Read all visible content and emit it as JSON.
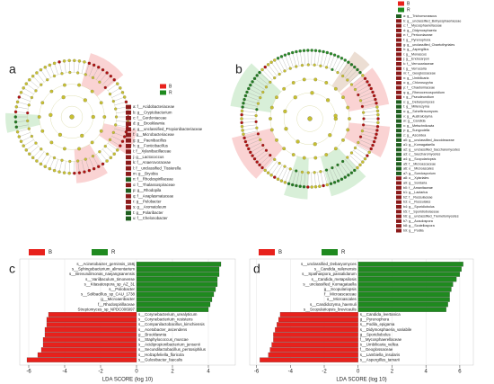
{
  "chart_data": [
    {
      "type": "barh",
      "panel_label": "c",
      "x_label": "LDA SCORE (log 10)",
      "categories": [
        "s__Acinetobacter_gerninsis_158j",
        "s__Sphingobacterium_alimentarium",
        "s__Brevundimonas_naejangsanensis",
        "s__Variibaculum_timonense",
        "s__Kitasatospora_sp_AZ_31",
        "s__Psilobacter",
        "s__Solibacillus_sp_CAU_1738",
        "g__Microaeribacter",
        "f__Rhodospirillaceae",
        "Streptomyces_sp_NPDC006997",
        "s__Corynebacterium_urealyticum",
        "s__Corynebacterium_resistens",
        "s__Companilactobacillus_kimchiensis",
        "s__Acetobacter_ascendens",
        "g__Brooklawnia",
        "s__Staphylococcus_muscae",
        "s__Acidipropionibacterium_jensenii",
        "s__Secundilactobacillus_pentosiphilus",
        "s__Holzapfeliella_floricola",
        "s__Gulosibacter_faecalis"
      ],
      "series": [
        {
          "name": "B",
          "color": "#e8211c",
          "values": [
            null,
            null,
            null,
            null,
            null,
            null,
            null,
            null,
            null,
            null,
            -4.9,
            -5.0,
            -5.0,
            -5.1,
            -5.1,
            -5.2,
            -5.2,
            -5.3,
            -5.5,
            -6.1
          ]
        },
        {
          "name": "R",
          "color": "#1f8a1f",
          "values": [
            4.7,
            4.6,
            4.6,
            4.5,
            4.5,
            4.4,
            4.3,
            4.2,
            4.1,
            4.0,
            null,
            null,
            null,
            null,
            null,
            null,
            null,
            null,
            null,
            null
          ]
        }
      ],
      "xlim": [
        -6.5,
        5.5
      ],
      "xticks": [
        -6,
        -4,
        -2,
        0,
        2,
        4
      ]
    },
    {
      "type": "barh",
      "panel_label": "d",
      "x_label": "LDA SCORE (log 10)",
      "categories": [
        "s__unclassified_Debaryomyces",
        "s__Candida_railenensis",
        "s__Spathaspora_passalidarum",
        "s__Candida_metapsilosis",
        "s__unclassified_Komagataella",
        "g__Scopulariopsis",
        "f__Microascaceae",
        "o__Microascales",
        "s__Candidozyma_haemuli",
        "s__Scopulariopsis_brevicaulis",
        "s__Candida_leertanica",
        "g__Pyrenophora",
        "s__Podila_epigama",
        "s__Didymosphaeria_variabile",
        "g__Sporidiobolus",
        "f__Mycosphaerellaceae",
        "s__Umbilicaria_vellea",
        "f__Geoglossaceae",
        "s__Lambiella_insularis",
        "s__Aspergillus_tamarii"
      ],
      "series": [
        {
          "name": "B",
          "color": "#e8211c",
          "values": [
            null,
            null,
            null,
            null,
            null,
            null,
            null,
            null,
            null,
            null,
            -4.6,
            -4.7,
            -4.8,
            -4.9,
            -5.0,
            -5.0,
            -5.1,
            -5.2,
            -5.3,
            -5.8
          ]
        },
        {
          "name": "R",
          "color": "#1f8a1f",
          "values": [
            6.2,
            6.1,
            6.0,
            5.8,
            5.6,
            5.5,
            5.4,
            5.4,
            5.3,
            5.2,
            null,
            null,
            null,
            null,
            null,
            null,
            null,
            null,
            null,
            null
          ]
        }
      ],
      "xlim": [
        -6.4,
        6.8
      ],
      "xticks": [
        -6,
        -4,
        -2,
        0,
        2,
        4,
        6
      ]
    }
  ],
  "cladograms": [
    {
      "panel_label": "a",
      "groups": [
        {
          "name": "B",
          "color": "#e8211c"
        },
        {
          "name": "R",
          "color": "#1f8a1f"
        }
      ],
      "taxa": [
        {
          "label": "a: f__Acidobacteriaceae",
          "color": "#8b1a1a"
        },
        {
          "label": "b: g__Cryptobacterium",
          "color": "#8b1a1a"
        },
        {
          "label": "c: f__Gordoniaceae",
          "color": "#8b1a1a"
        },
        {
          "label": "d: g__Brooklawnia",
          "color": "#8b1a1a"
        },
        {
          "label": "e: g__unclassified_Propionibacteriaceae",
          "color": "#8b1a1a"
        },
        {
          "label": "f: g__Microbacteriaceae",
          "color": "#8b1a1a"
        },
        {
          "label": "g: g__Paenibacillus",
          "color": "#8b1a1a"
        },
        {
          "label": "h: g__Fonticibacillus",
          "color": "#8b1a1a"
        },
        {
          "label": "i: f__Xylanibacillaceae",
          "color": "#8b1a1a"
        },
        {
          "label": "j: g__Lactococcus",
          "color": "#8b1a1a"
        },
        {
          "label": "k: f__Anaerovoraceae",
          "color": "#8b1a1a"
        },
        {
          "label": "l: f__unclassified_Tissierella",
          "color": "#8b1a1a"
        },
        {
          "label": "m: g__Bryobia",
          "color": "#8b1a1a"
        },
        {
          "label": "n: f__Rhodospirillaceae",
          "color": "#1f5f1f"
        },
        {
          "label": "o: f__Thalassospiraceae",
          "color": "#8b1a1a"
        },
        {
          "label": "p: g__Rhodopila",
          "color": "#1f5f1f"
        },
        {
          "label": "q: f__Anaplasmataceae",
          "color": "#8b1a1a"
        },
        {
          "label": "r: g__Pelobacter",
          "color": "#8b1a1a"
        },
        {
          "label": "s: g__Aromatoleum",
          "color": "#8b1a1a"
        },
        {
          "label": "t: g__Polaribacter",
          "color": "#1f5f1f"
        },
        {
          "label": "u: f__Chelonobacter",
          "color": "#1f5f1f"
        }
      ]
    },
    {
      "panel_label": "b",
      "groups": [
        {
          "name": "B",
          "color": "#e8211c"
        },
        {
          "name": "R",
          "color": "#1f8a1f"
        }
      ],
      "taxa": [
        {
          "label": "a: g__Trichomonascus",
          "color": "#1f5f1f"
        },
        {
          "label": "b: g__unclassified_Botryosphaeriaceae",
          "color": "#8b1a1a"
        },
        {
          "label": "c: f__Mycosphaerellaceae",
          "color": "#8b1a1a"
        },
        {
          "label": "d: g__Didymosphaeria",
          "color": "#8b1a1a"
        },
        {
          "label": "e: f__Periconiaceae",
          "color": "#8b1a1a"
        },
        {
          "label": "f: g__Pyrenophora",
          "color": "#8b1a1a"
        },
        {
          "label": "g: g__unclassified_Chaetothyriales",
          "color": "#8b1a1a"
        },
        {
          "label": "h: g__Aspergillus",
          "color": "#8b1a1a"
        },
        {
          "label": "i: g__Monascus",
          "color": "#8b1a1a"
        },
        {
          "label": "j: g__Endocarpon",
          "color": "#8b1a1a"
        },
        {
          "label": "k: f__Verrucariaceae",
          "color": "#8b1a1a"
        },
        {
          "label": "l: g__Verrucaria",
          "color": "#8b1a1a"
        },
        {
          "label": "m: f__Geoglossaceae",
          "color": "#8b1a1a"
        },
        {
          "label": "n: g__Umbilicaria",
          "color": "#8b1a1a"
        },
        {
          "label": "o: g__Chloroscypha",
          "color": "#8b1a1a"
        },
        {
          "label": "p: f__Chaetomiaceae",
          "color": "#8b1a1a"
        },
        {
          "label": "q: g__Rhexocercosporidium",
          "color": "#8b1a1a"
        },
        {
          "label": "r: g__Pseudeurotium",
          "color": "#8b1a1a"
        },
        {
          "label": "s: g__Debaryomyces",
          "color": "#1f5f1f"
        },
        {
          "label": "t: g__Millerozyma",
          "color": "#1f5f1f"
        },
        {
          "label": "u: g__Scheffersomyces",
          "color": "#1f5f1f"
        },
        {
          "label": "v: g__Australozyma",
          "color": "#1f5f1f"
        },
        {
          "label": "w: g__Candida",
          "color": "#1f5f1f"
        },
        {
          "label": "x: g__Metschnikowia",
          "color": "#1f5f1f"
        },
        {
          "label": "y: g__Sungouiella",
          "color": "#1f5f1f"
        },
        {
          "label": "z: g__Ascoidea",
          "color": "#1f5f1f"
        },
        {
          "label": "a0: g__unclassified_Ascoideaceae",
          "color": "#1f5f1f"
        },
        {
          "label": "a1: g__Komagataella",
          "color": "#1f5f1f"
        },
        {
          "label": "a2: g__unclassified_Saccharomycetes",
          "color": "#1f5f1f"
        },
        {
          "label": "a3: c__Saccharomycetes",
          "color": "#1f5f1f"
        },
        {
          "label": "a4: g__Scopulariopsis",
          "color": "#1f5f1f"
        },
        {
          "label": "a5: f__Microascaceae",
          "color": "#1f5f1f"
        },
        {
          "label": "a6: o__Microascales",
          "color": "#1f5f1f"
        },
        {
          "label": "a7: g__Scedosporium",
          "color": "#1f5f1f"
        },
        {
          "label": "a8: o__Xylariales",
          "color": "#8b1a1a"
        },
        {
          "label": "a9: g__Sordaria",
          "color": "#8b1a1a"
        },
        {
          "label": "b0: f__Amanitaceae",
          "color": "#8b1a1a"
        },
        {
          "label": "b1: g__Lactarius",
          "color": "#8b1a1a"
        },
        {
          "label": "b2: f__Russulaceae",
          "color": "#8b1a1a"
        },
        {
          "label": "b3: o__Russulales",
          "color": "#8b1a1a"
        },
        {
          "label": "b4: g__Sporidiobolus",
          "color": "#8b1a1a"
        },
        {
          "label": "b5: f__Sporidiobolaceae",
          "color": "#8b1a1a"
        },
        {
          "label": "b6: g__unclassified_Tremellomycetes",
          "color": "#8b1a1a"
        },
        {
          "label": "b7: g__Acaulospora",
          "color": "#8b1a1a"
        },
        {
          "label": "b8: g__Scutellospora",
          "color": "#8b1a1a"
        },
        {
          "label": "b9: g__Podila",
          "color": "#8b1a1a"
        }
      ]
    }
  ]
}
